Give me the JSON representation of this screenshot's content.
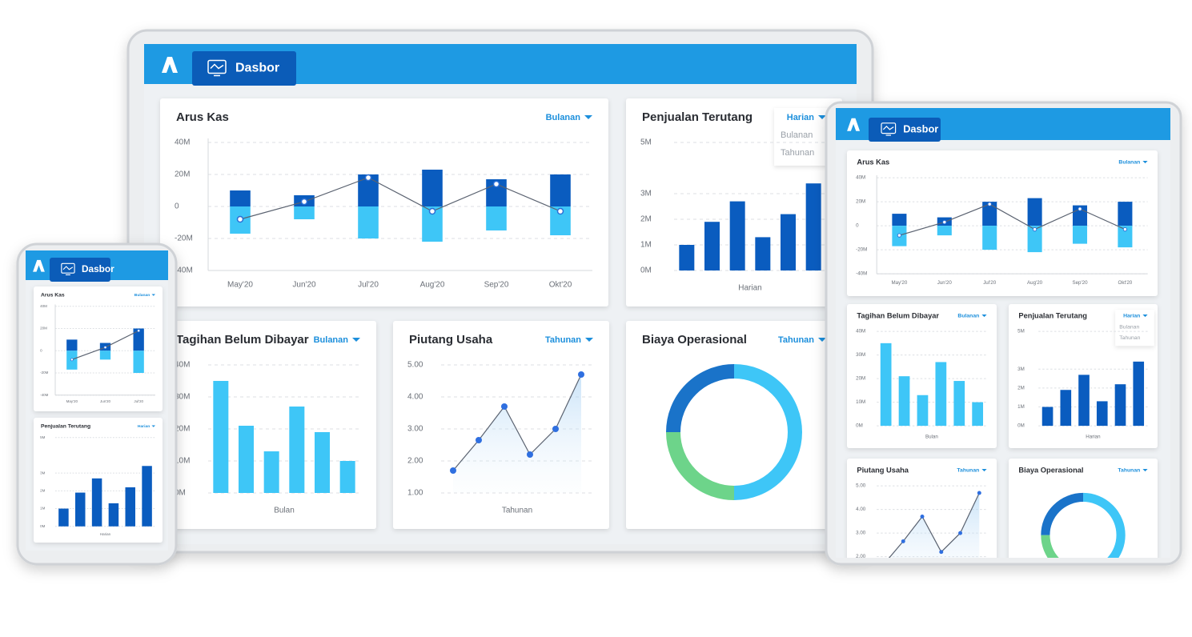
{
  "nav": {
    "tab": "Dasbor"
  },
  "chart_data": [
    {
      "type": "bar",
      "title": "Arus Kas",
      "period": "Bulanan",
      "categories": [
        "May'20",
        "Jun'20",
        "Jul'20",
        "Aug'20",
        "Sep'20",
        "Okt'20"
      ],
      "series": [
        {
          "color": "#0a5cbf",
          "values": [
            10,
            7,
            20,
            23,
            17,
            20
          ]
        },
        {
          "color": "#3ec6f7",
          "values": [
            -17,
            -8,
            -20,
            -22,
            -15,
            -18
          ]
        },
        {
          "type": "line",
          "color": "#5a6270",
          "values": [
            -8,
            3,
            18,
            -3,
            14,
            -3
          ]
        }
      ],
      "ylim": [
        -40,
        40
      ],
      "yticks": [
        {
          "value": -40,
          "label": "-40M"
        },
        {
          "value": -20,
          "label": "-20M"
        },
        0,
        {
          "value": 20,
          "label": "20M"
        },
        {
          "value": 40,
          "label": "40M"
        }
      ],
      "grid": true
    },
    {
      "type": "bar",
      "title": "Penjualan Terutang",
      "period": "Harian",
      "options": [
        "Bulanan",
        "Tahunan"
      ],
      "x_label": "Harian",
      "values": [
        1,
        1.9,
        2.7,
        1.3,
        2.2,
        3.4
      ],
      "color": "#0a5cbf",
      "ylim": [
        0,
        5
      ],
      "yticks": [
        {
          "value": 0,
          "label": "0M"
        },
        {
          "value": 1,
          "label": "1M"
        },
        {
          "value": 2,
          "label": "2M"
        },
        {
          "value": 3,
          "label": "3M"
        },
        {
          "value": 5,
          "label": "5M"
        }
      ],
      "grid": true
    },
    {
      "type": "bar",
      "title": "Tagihan Belum Dibayar",
      "period": "Bulanan",
      "x_label": "Bulan",
      "values": [
        35,
        21,
        13,
        27,
        19,
        10
      ],
      "color": "#3ec6f7",
      "ylim": [
        0,
        40
      ],
      "yticks": [
        {
          "value": 0,
          "label": "0M"
        },
        {
          "value": 10,
          "label": "10M"
        },
        {
          "value": 20,
          "label": "20M"
        },
        {
          "value": 30,
          "label": "30M"
        },
        {
          "value": 40,
          "label": "40M"
        }
      ],
      "grid": true
    },
    {
      "type": "line",
      "title": "Piutang Usaha",
      "period": "Tahunan",
      "x_label": "Tahunan",
      "values": [
        1.7,
        2.65,
        3.7,
        2.2,
        3.0,
        4.7
      ],
      "color": "#2f6fe0",
      "ylim": [
        1,
        5
      ],
      "yticks": [
        {
          "value": 1,
          "label": "1.00"
        },
        {
          "value": 2,
          "label": "2.00"
        },
        {
          "value": 3,
          "label": "3.00"
        },
        {
          "value": 4,
          "label": "4.00"
        },
        {
          "value": 5,
          "label": "5.00"
        }
      ],
      "grid": true
    },
    {
      "type": "pie",
      "title": "Biaya Operasional",
      "period": "Tahunan",
      "donut": true,
      "values": [
        50,
        25,
        25
      ],
      "colors": [
        "#3ec6f7",
        "#6dd48a",
        "#1a73c9"
      ]
    }
  ]
}
